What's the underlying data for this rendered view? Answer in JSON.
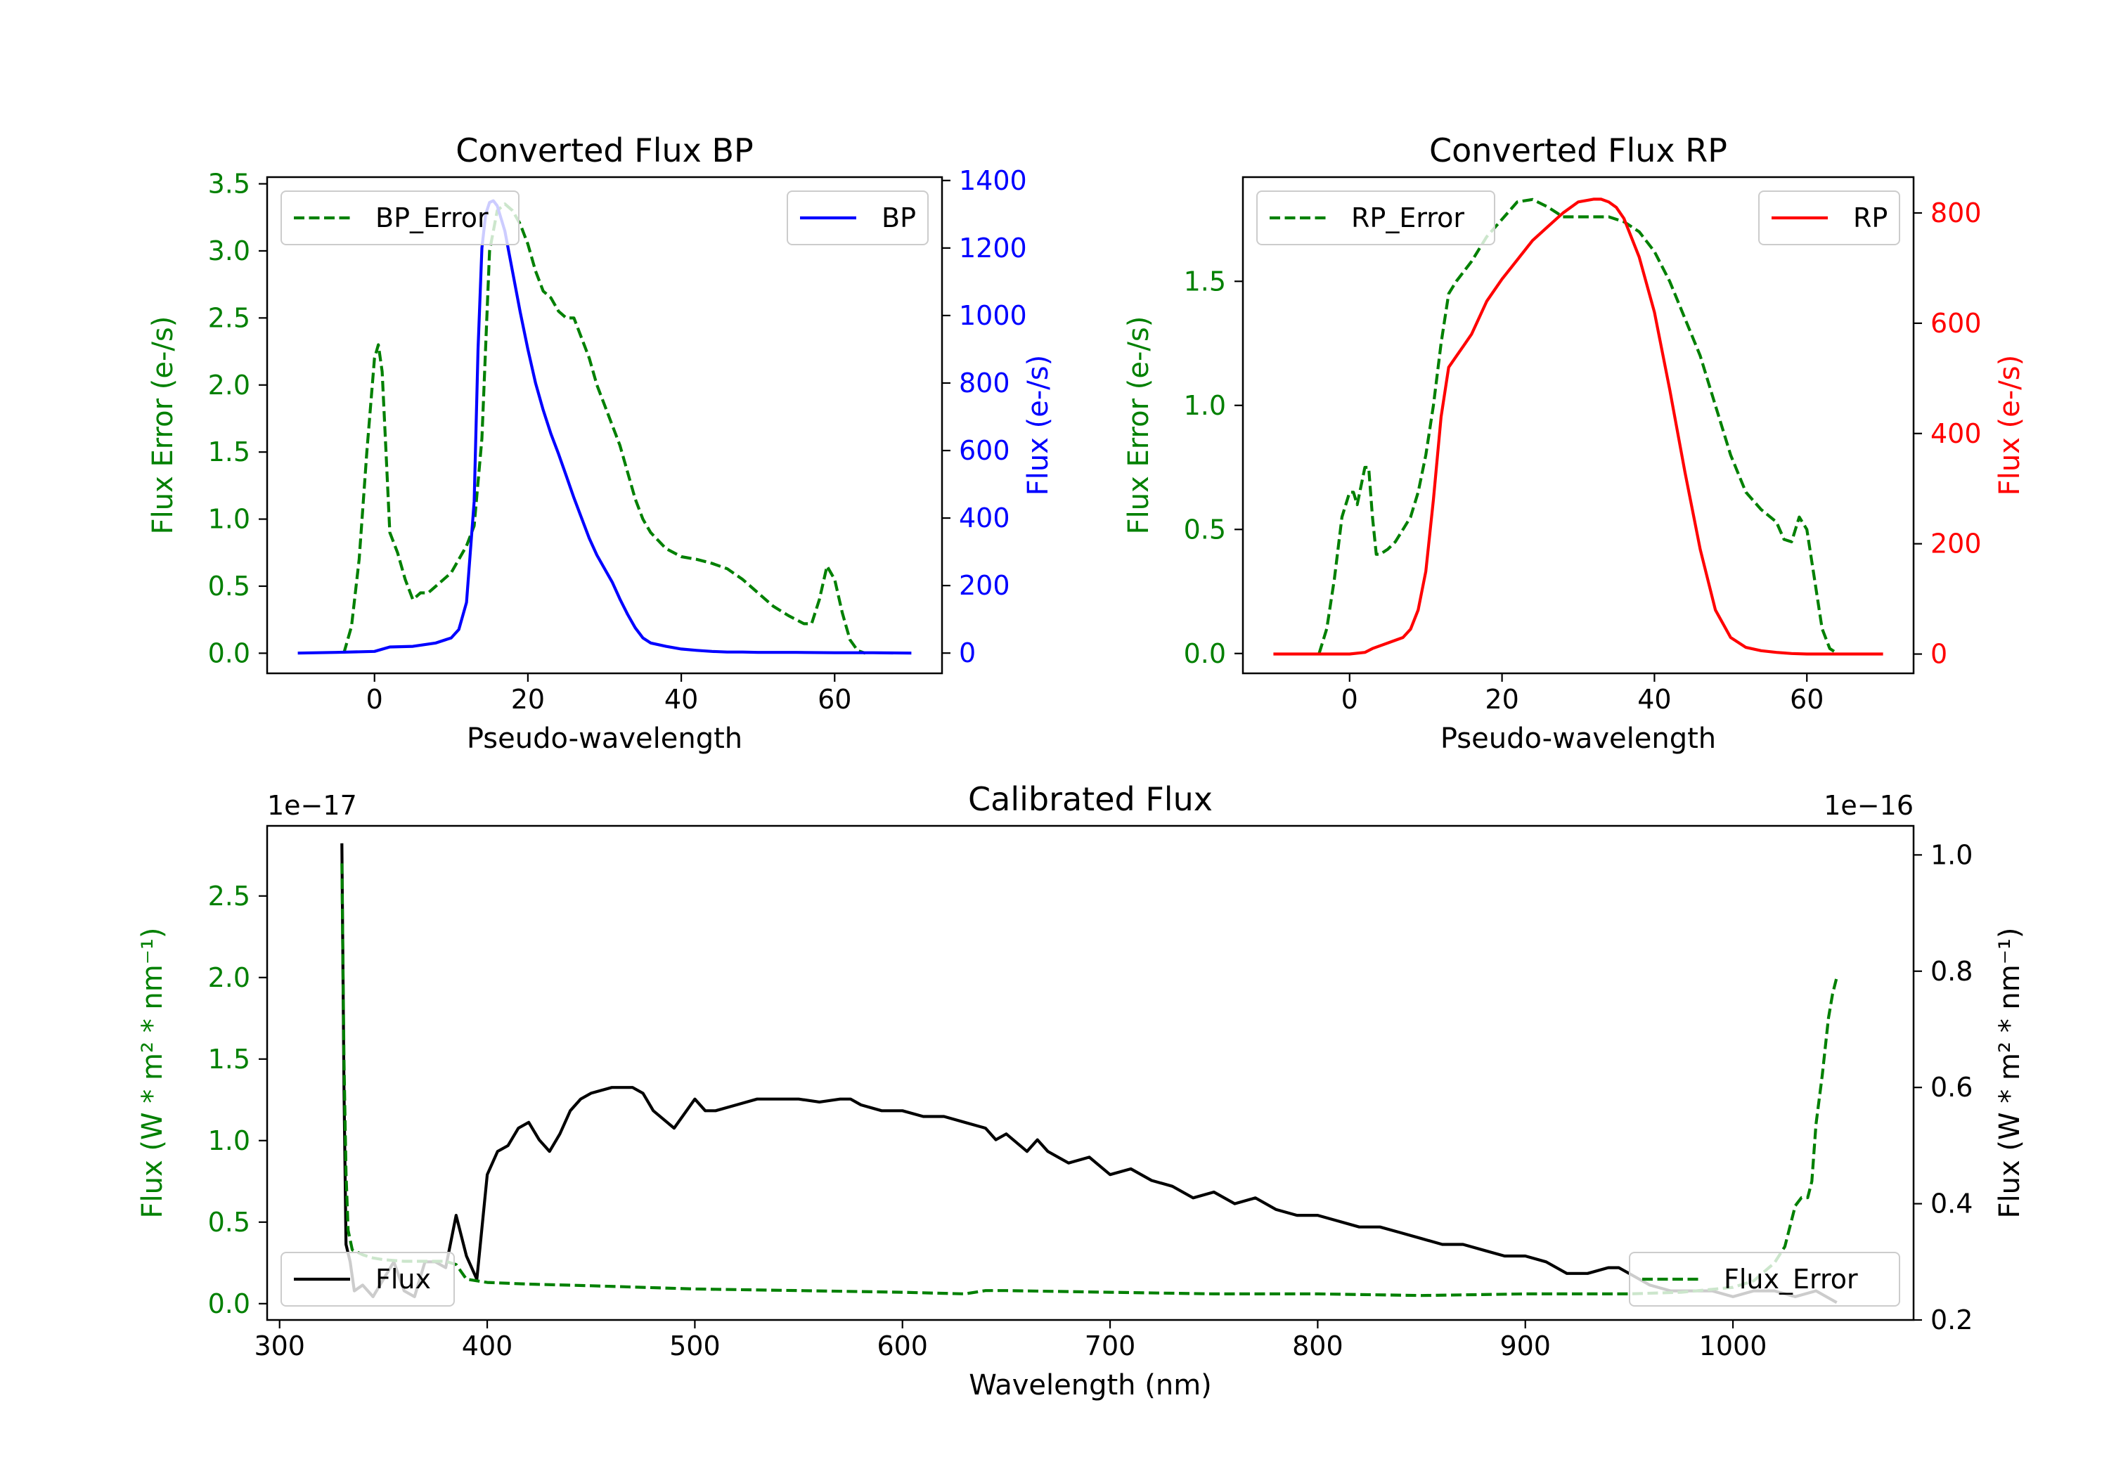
{
  "colors": {
    "error": "#008000",
    "bp": "#0000ff",
    "rp": "#ff0000",
    "flux": "#000000"
  },
  "chart_data": [
    {
      "id": "bp",
      "type": "line",
      "title": "Converted Flux BP",
      "xlabel": "Pseudo-wavelength",
      "ylabel_left": "Flux Error (e-/s)",
      "ylabel_right": "Flux (e-/s)",
      "xlim": [
        -14,
        74
      ],
      "ylim_left": [
        -0.15,
        3.55
      ],
      "ylim_right": [
        -60,
        1410
      ],
      "xticks": [
        "0",
        "20",
        "40",
        "60"
      ],
      "yticks_left": [
        "0.0",
        "0.5",
        "1.0",
        "1.5",
        "2.0",
        "2.5",
        "3.0",
        "3.5"
      ],
      "yticks_right": [
        "0",
        "200",
        "400",
        "600",
        "800",
        "1000",
        "1200",
        "1400"
      ],
      "legend": {
        "left": "BP_Error",
        "right": "BP"
      },
      "series": [
        {
          "name": "BP_Error",
          "axis": "left",
          "style": "dashed",
          "color": "#008000",
          "x": [
            -4,
            -3,
            -2,
            -1,
            0,
            0.5,
            1,
            1.5,
            2,
            3,
            4,
            5,
            6,
            7,
            8,
            10,
            12,
            13,
            14,
            15,
            16,
            17,
            18,
            19,
            20,
            21,
            22,
            23,
            24,
            25,
            26,
            27,
            28,
            29,
            30,
            31,
            32,
            33,
            34,
            35,
            36,
            38,
            40,
            42,
            44,
            46,
            48,
            50,
            52,
            54,
            56,
            57,
            58,
            59,
            60,
            61,
            62,
            63,
            64
          ],
          "y": [
            0.0,
            0.2,
            0.7,
            1.5,
            2.2,
            2.3,
            2.1,
            1.5,
            0.9,
            0.75,
            0.55,
            0.4,
            0.45,
            0.45,
            0.5,
            0.6,
            0.8,
            0.95,
            1.6,
            3.0,
            3.3,
            3.35,
            3.3,
            3.2,
            3.05,
            2.85,
            2.7,
            2.65,
            2.55,
            2.5,
            2.5,
            2.35,
            2.2,
            2.0,
            1.85,
            1.7,
            1.55,
            1.35,
            1.15,
            1.0,
            0.9,
            0.78,
            0.72,
            0.7,
            0.67,
            0.63,
            0.55,
            0.45,
            0.35,
            0.28,
            0.22,
            0.22,
            0.4,
            0.65,
            0.55,
            0.3,
            0.1,
            0.02,
            0.0
          ]
        },
        {
          "name": "BP",
          "axis": "right",
          "style": "solid",
          "color": "#0000ff",
          "x": [
            -10,
            -5,
            0,
            2,
            5,
            8,
            10,
            11,
            12,
            13,
            13.5,
            14,
            14.5,
            15,
            15.5,
            16,
            17,
            18,
            19,
            20,
            21,
            22,
            23,
            24,
            25,
            26,
            27,
            28,
            29,
            30,
            31,
            32,
            33,
            34,
            35,
            36,
            37,
            38,
            40,
            42,
            44,
            46,
            48,
            50,
            55,
            60,
            65,
            70
          ],
          "y": [
            0,
            2,
            5,
            18,
            20,
            30,
            45,
            70,
            150,
            450,
            900,
            1200,
            1300,
            1335,
            1340,
            1325,
            1250,
            1130,
            1010,
            900,
            800,
            720,
            650,
            590,
            525,
            460,
            400,
            340,
            290,
            250,
            210,
            160,
            115,
            75,
            45,
            30,
            25,
            20,
            12,
            8,
            5,
            3,
            3,
            2,
            2,
            1,
            1,
            0
          ]
        }
      ]
    },
    {
      "id": "rp",
      "type": "line",
      "title": "Converted Flux RP",
      "xlabel": "Pseudo-wavelength",
      "ylabel_left": "Flux Error (e-/s)",
      "ylabel_right": "Flux (e-/s)",
      "xlim": [
        -14,
        74
      ],
      "ylim_left": [
        -0.08,
        1.92
      ],
      "ylim_right": [
        -35,
        865
      ],
      "xticks": [
        "0",
        "20",
        "40",
        "60"
      ],
      "yticks_left": [
        "0.0",
        "0.5",
        "1.0",
        "1.5"
      ],
      "yticks_right": [
        "0",
        "200",
        "400",
        "600",
        "800"
      ],
      "legend": {
        "left": "RP_Error",
        "right": "RP"
      },
      "series": [
        {
          "name": "RP_Error",
          "axis": "left",
          "style": "dashed",
          "color": "#008000",
          "x": [
            -4,
            -3,
            -2,
            -1,
            0,
            0.5,
            1,
            2,
            2.5,
            3,
            3.5,
            4,
            5,
            6,
            7,
            8,
            9,
            10,
            11,
            12,
            13,
            14,
            16,
            18,
            20,
            22,
            24,
            26,
            28,
            30,
            32,
            34,
            36,
            38,
            40,
            42,
            44,
            46,
            48,
            50,
            52,
            54,
            56,
            57,
            58,
            59,
            60,
            61,
            62,
            63,
            64
          ],
          "y": [
            0.0,
            0.1,
            0.3,
            0.55,
            0.65,
            0.65,
            0.6,
            0.75,
            0.75,
            0.55,
            0.4,
            0.4,
            0.42,
            0.45,
            0.5,
            0.55,
            0.65,
            0.8,
            1.0,
            1.25,
            1.45,
            1.5,
            1.58,
            1.68,
            1.75,
            1.82,
            1.83,
            1.8,
            1.76,
            1.76,
            1.76,
            1.76,
            1.74,
            1.7,
            1.62,
            1.5,
            1.35,
            1.2,
            1.0,
            0.8,
            0.65,
            0.58,
            0.53,
            0.46,
            0.45,
            0.55,
            0.5,
            0.3,
            0.1,
            0.02,
            0.0
          ]
        },
        {
          "name": "RP",
          "axis": "right",
          "style": "solid",
          "color": "#ff0000",
          "x": [
            -10,
            -5,
            0,
            2,
            3,
            5,
            7,
            8,
            9,
            10,
            11,
            12,
            13,
            14,
            15,
            16,
            18,
            20,
            22,
            24,
            26,
            28,
            30,
            32,
            33,
            34,
            35,
            36,
            38,
            40,
            42,
            44,
            46,
            48,
            50,
            52,
            54,
            56,
            58,
            60,
            65,
            70
          ],
          "y": [
            0,
            0,
            0,
            3,
            10,
            20,
            30,
            45,
            80,
            150,
            280,
            430,
            520,
            540,
            560,
            580,
            640,
            680,
            715,
            750,
            775,
            800,
            820,
            825,
            825,
            820,
            810,
            790,
            720,
            620,
            480,
            330,
            190,
            80,
            30,
            12,
            6,
            3,
            1,
            0,
            0,
            0
          ]
        }
      ]
    },
    {
      "id": "cal",
      "type": "line",
      "title": "Calibrated Flux",
      "xlabel": "Wavelength (nm)",
      "ylabel_left": "Flux (W * m² * nm⁻¹)",
      "ylabel_right": "Flux (W * m² * nm⁻¹)",
      "offset_left": "1e−17",
      "offset_right": "1e−16",
      "xlim": [
        294,
        1087
      ],
      "ylim_left": [
        -0.1,
        2.93
      ],
      "ylim_right": [
        0.2,
        1.05
      ],
      "xticks": [
        "300",
        "400",
        "500",
        "600",
        "700",
        "800",
        "900",
        "1000"
      ],
      "yticks_left": [
        "0.0",
        "0.5",
        "1.0",
        "1.5",
        "2.0",
        "2.5"
      ],
      "yticks_right": [
        "0.2",
        "0.4",
        "0.6",
        "0.8",
        "1.0"
      ],
      "legend": {
        "left": "Flux",
        "right": "Flux_Error"
      },
      "series": [
        {
          "name": "Flux",
          "axis": "right",
          "style": "solid",
          "color": "#000000",
          "x": [
            330,
            331,
            332,
            334,
            336,
            340,
            345,
            350,
            355,
            360,
            365,
            370,
            375,
            380,
            385,
            390,
            395,
            400,
            405,
            410,
            415,
            420,
            425,
            430,
            435,
            440,
            445,
            450,
            460,
            470,
            475,
            480,
            490,
            500,
            505,
            510,
            520,
            530,
            540,
            550,
            560,
            570,
            575,
            580,
            590,
            600,
            610,
            620,
            630,
            640,
            645,
            650,
            660,
            665,
            670,
            680,
            690,
            700,
            710,
            720,
            730,
            740,
            750,
            760,
            770,
            780,
            790,
            800,
            810,
            820,
            830,
            840,
            850,
            860,
            870,
            880,
            890,
            900,
            910,
            920,
            930,
            940,
            945,
            950,
            960,
            970,
            980,
            990,
            1000,
            1010,
            1020,
            1030,
            1040,
            1045,
            1050
          ],
          "y": [
            1.02,
            0.6,
            0.33,
            0.3,
            0.25,
            0.26,
            0.24,
            0.27,
            0.3,
            0.25,
            0.24,
            0.3,
            0.3,
            0.29,
            0.38,
            0.31,
            0.27,
            0.45,
            0.49,
            0.5,
            0.53,
            0.54,
            0.51,
            0.49,
            0.52,
            0.56,
            0.58,
            0.59,
            0.6,
            0.6,
            0.59,
            0.56,
            0.53,
            0.58,
            0.56,
            0.56,
            0.57,
            0.58,
            0.58,
            0.58,
            0.575,
            0.58,
            0.58,
            0.57,
            0.56,
            0.56,
            0.55,
            0.55,
            0.54,
            0.53,
            0.51,
            0.52,
            0.49,
            0.51,
            0.49,
            0.47,
            0.48,
            0.45,
            0.46,
            0.44,
            0.43,
            0.41,
            0.42,
            0.4,
            0.41,
            0.39,
            0.38,
            0.38,
            0.37,
            0.36,
            0.36,
            0.35,
            0.34,
            0.33,
            0.33,
            0.32,
            0.31,
            0.31,
            0.3,
            0.28,
            0.28,
            0.29,
            0.29,
            0.28,
            0.26,
            0.25,
            0.25,
            0.25,
            0.24,
            0.25,
            0.25,
            0.24,
            0.25,
            0.24,
            0.23
          ]
        },
        {
          "name": "Flux_Error",
          "axis": "left",
          "style": "dashed",
          "color": "#008000",
          "x": [
            330,
            331,
            332,
            333,
            335,
            340,
            345,
            350,
            360,
            370,
            380,
            385,
            390,
            400,
            420,
            450,
            500,
            550,
            600,
            630,
            640,
            650,
            700,
            750,
            800,
            850,
            900,
            950,
            975,
            1000,
            1010,
            1020,
            1025,
            1028,
            1030,
            1033,
            1036,
            1038,
            1040,
            1043,
            1046,
            1048,
            1050
          ],
          "y": [
            2.7,
            1.5,
            0.8,
            0.45,
            0.33,
            0.3,
            0.28,
            0.27,
            0.26,
            0.26,
            0.26,
            0.24,
            0.15,
            0.13,
            0.12,
            0.11,
            0.09,
            0.08,
            0.07,
            0.06,
            0.08,
            0.08,
            0.07,
            0.06,
            0.06,
            0.05,
            0.06,
            0.06,
            0.07,
            0.1,
            0.14,
            0.25,
            0.35,
            0.5,
            0.6,
            0.65,
            0.65,
            0.75,
            1.1,
            1.4,
            1.75,
            1.9,
            2.0
          ]
        }
      ]
    }
  ]
}
